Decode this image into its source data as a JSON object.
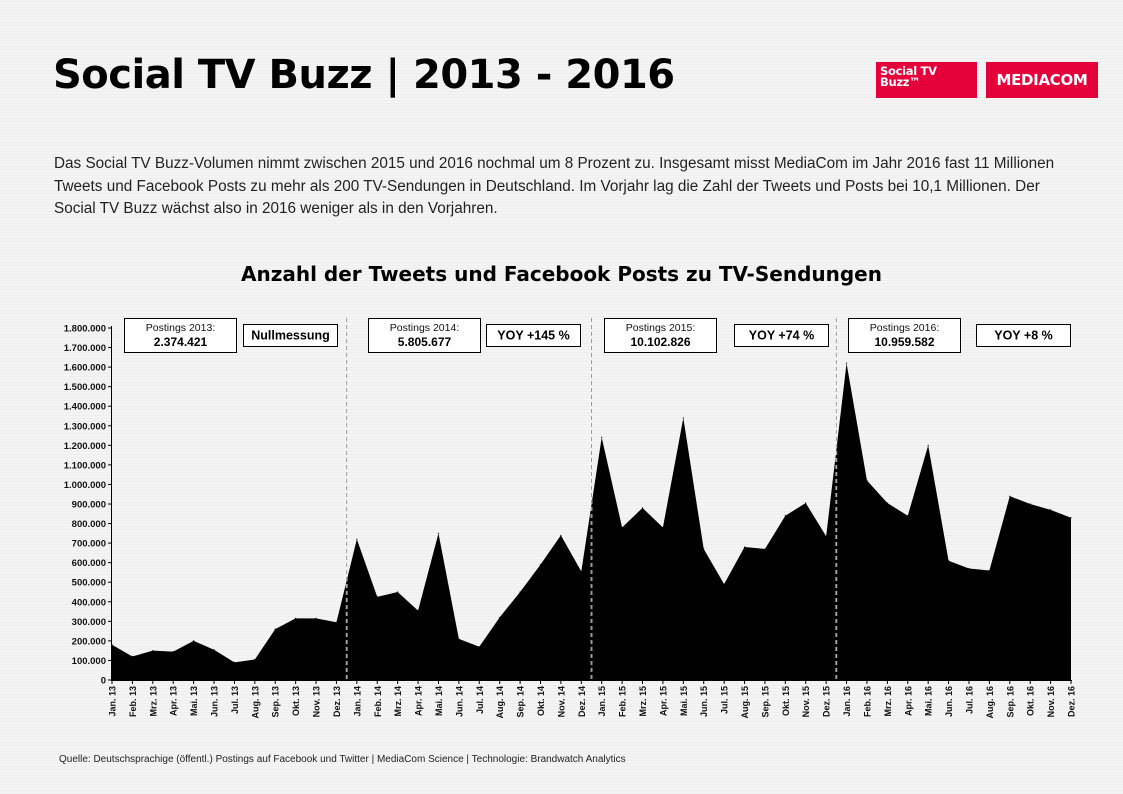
{
  "header": {
    "title": "Social TV Buzz | 2013 - 2016",
    "logo_buzz_line1": "Social TV",
    "logo_buzz_line2": "Buzz™",
    "logo_mediacom": "MEDIACOM"
  },
  "intro": "Das Social TV Buzz-Volumen nimmt zwischen 2015 und 2016 nochmal um 8 Prozent zu. Insgesamt misst MediaCom im Jahr 2016 fast 11 Millionen Tweets und Facebook Posts zu mehr als 200 TV-Sendungen in Deutschland. Im Vorjahr lag die Zahl der Tweets und Posts bei 10,1 Millionen. Der Social TV Buzz wächst also in 2016 weniger als in den Vorjahren.",
  "footer": {
    "source": "Quelle: Deutschsprachige (öffentl.) Postings auf Facebook und Twitter | MediaCom Science | Technologie: Brandwatch Analytics"
  },
  "colors": {
    "brand": "#e4003a",
    "area": "#000000",
    "divider": "#9a9a9a"
  },
  "chart_data": {
    "type": "area",
    "title": "Anzahl der Tweets und Facebook Posts zu TV-Sendungen",
    "xlabel": "",
    "ylabel": "",
    "ylim": [
      0,
      1800000
    ],
    "y_ticks": [
      "0",
      "100.000",
      "200.000",
      "300.000",
      "400.000",
      "500.000",
      "600.000",
      "700.000",
      "800.000",
      "900.000",
      "1.000.000",
      "1.100.000",
      "1.200.000",
      "1.300.000",
      "1.400.000",
      "1.500.000",
      "1.600.000",
      "1.700.000",
      "1.800.000"
    ],
    "categories": [
      "Jan. 13",
      "Feb. 13",
      "Mrz. 13",
      "Apr. 13",
      "Mai. 13",
      "Jun. 13",
      "Jul. 13",
      "Aug. 13",
      "Sep. 13",
      "Okt. 13",
      "Nov. 13",
      "Dez. 13",
      "Jan. 14",
      "Feb. 14",
      "Mrz. 14",
      "Apr. 14",
      "Mai. 14",
      "Jun. 14",
      "Jul. 14",
      "Aug. 14",
      "Sep. 14",
      "Okt. 14",
      "Nov. 14",
      "Dez. 14",
      "Jan. 15",
      "Feb. 15",
      "Mrz. 15",
      "Apr. 15",
      "Mai. 15",
      "Jun. 15",
      "Jul. 15",
      "Aug. 15",
      "Sep. 15",
      "Okt. 15",
      "Nov. 15",
      "Dez. 15",
      "Jan. 16",
      "Feb. 16",
      "Mrz. 16",
      "Apr. 16",
      "Mai. 16",
      "Jun. 16",
      "Jul. 16",
      "Aug. 16",
      "Sep. 16",
      "Okt. 16",
      "Nov. 16",
      "Dez. 16"
    ],
    "values": [
      180000,
      120000,
      150000,
      145000,
      200000,
      155000,
      90000,
      105000,
      260000,
      315000,
      315000,
      295000,
      720000,
      425000,
      450000,
      355000,
      750000,
      210000,
      170000,
      320000,
      450000,
      590000,
      740000,
      555000,
      1240000,
      780000,
      880000,
      780000,
      1340000,
      670000,
      490000,
      680000,
      670000,
      840000,
      905000,
      735000,
      1620000,
      1020000,
      905000,
      840000,
      1200000,
      610000,
      570000,
      560000,
      940000,
      900000,
      870000,
      830000
    ],
    "year_dividers_after": [
      "Dez. 13",
      "Dez. 14",
      "Dez. 15"
    ],
    "annotations": [
      {
        "year": "2013",
        "label": "Postings 2013:",
        "value": "2.374.421",
        "yoy": "Nullmessung"
      },
      {
        "year": "2014",
        "label": "Postings 2014:",
        "value": "5.805.677",
        "yoy": "YOY +145 %"
      },
      {
        "year": "2015",
        "label": "Postings 2015:",
        "value": "10.102.826",
        "yoy": "YOY +74 %"
      },
      {
        "year": "2016",
        "label": "Postings 2016:",
        "value": "10.959.582",
        "yoy": "YOY +8 %"
      }
    ]
  }
}
